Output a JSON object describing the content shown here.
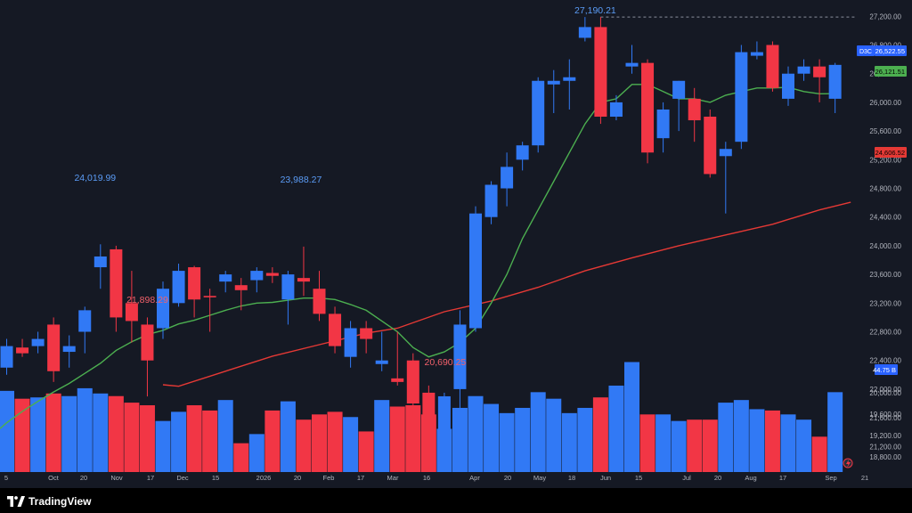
{
  "brand": {
    "name": "TradingView"
  },
  "chart_data": {
    "type": "candlestick",
    "up_color": "#3179f5",
    "down_color": "#f23645",
    "ma_fast_color": "#4caf50",
    "ma_slow_color": "#e53935",
    "y_ticks": [
      "27,200.00",
      "26,800.00",
      "26,400.00",
      "26,000.00",
      "25,600.00",
      "25,200.00",
      "24,800.00",
      "24,400.00",
      "24,000.00",
      "23,600.00",
      "23,200.00",
      "22,800.00",
      "22,400.00",
      "22,000.00",
      "21,600.00",
      "21,200.00",
      "20,800.00",
      "20,000.00",
      "19,600.00",
      "19,200.00",
      "18,800.00"
    ],
    "x_labels": [
      "5",
      "Oct",
      "20",
      "Nov",
      "17",
      "Dec",
      "15",
      "2026",
      "20",
      "Feb",
      "17",
      "Mar",
      "16",
      "Apr",
      "20",
      "May",
      "18",
      "Jun",
      "15",
      "Jul",
      "20",
      "Aug",
      "17",
      "Sep",
      "21"
    ],
    "candles": [
      {
        "o": 22300,
        "h": 22700,
        "l": 22200,
        "c": 22600
      },
      {
        "o": 22580,
        "h": 22700,
        "l": 22450,
        "c": 22500
      },
      {
        "o": 22600,
        "h": 22800,
        "l": 22500,
        "c": 22700
      },
      {
        "o": 22900,
        "h": 23000,
        "l": 22100,
        "c": 22250
      },
      {
        "o": 22520,
        "h": 22750,
        "l": 22300,
        "c": 22600
      },
      {
        "o": 22800,
        "h": 23150,
        "l": 22500,
        "c": 23100
      },
      {
        "o": 23700,
        "h": 24020,
        "l": 23400,
        "c": 23850
      },
      {
        "o": 23950,
        "h": 24000,
        "l": 22800,
        "c": 23000
      },
      {
        "o": 23200,
        "h": 23650,
        "l": 22650,
        "c": 22950
      },
      {
        "o": 22900,
        "h": 23000,
        "l": 21898,
        "c": 22400
      },
      {
        "o": 22850,
        "h": 23500,
        "l": 22700,
        "c": 23400
      },
      {
        "o": 23200,
        "h": 23750,
        "l": 23150,
        "c": 23650
      },
      {
        "o": 23700,
        "h": 23720,
        "l": 23000,
        "c": 23250
      },
      {
        "o": 23300,
        "h": 23400,
        "l": 22800,
        "c": 23280
      },
      {
        "o": 23500,
        "h": 23650,
        "l": 23350,
        "c": 23600
      },
      {
        "o": 23450,
        "h": 23550,
        "l": 23100,
        "c": 23380
      },
      {
        "o": 23520,
        "h": 23700,
        "l": 23350,
        "c": 23650
      },
      {
        "o": 23620,
        "h": 23700,
        "l": 23480,
        "c": 23580
      },
      {
        "o": 23250,
        "h": 23650,
        "l": 22900,
        "c": 23600
      },
      {
        "o": 23550,
        "h": 23988,
        "l": 23300,
        "c": 23500
      },
      {
        "o": 23400,
        "h": 23650,
        "l": 22950,
        "c": 23050
      },
      {
        "o": 23050,
        "h": 23150,
        "l": 22500,
        "c": 22600
      },
      {
        "o": 22450,
        "h": 22950,
        "l": 22300,
        "c": 22850
      },
      {
        "o": 22850,
        "h": 22950,
        "l": 22500,
        "c": 22700
      },
      {
        "o": 22350,
        "h": 22800,
        "l": 22250,
        "c": 22400
      },
      {
        "o": 22150,
        "h": 22800,
        "l": 22050,
        "c": 22100
      },
      {
        "o": 22400,
        "h": 22500,
        "l": 21600,
        "c": 21800
      },
      {
        "o": 21950,
        "h": 22050,
        "l": 20700,
        "c": 20900
      },
      {
        "o": 20800,
        "h": 21950,
        "l": 20690,
        "c": 21900
      },
      {
        "o": 22000,
        "h": 23100,
        "l": 21700,
        "c": 22900
      },
      {
        "o": 22850,
        "h": 24550,
        "l": 22800,
        "c": 24450
      },
      {
        "o": 24400,
        "h": 24900,
        "l": 24300,
        "c": 24850
      },
      {
        "o": 24800,
        "h": 25300,
        "l": 24550,
        "c": 25100
      },
      {
        "o": 25200,
        "h": 25450,
        "l": 25050,
        "c": 25400
      },
      {
        "o": 25400,
        "h": 26350,
        "l": 25300,
        "c": 26300
      },
      {
        "o": 26250,
        "h": 26450,
        "l": 25850,
        "c": 26300
      },
      {
        "o": 26300,
        "h": 26600,
        "l": 25900,
        "c": 26350
      },
      {
        "o": 26900,
        "h": 27190,
        "l": 26850,
        "c": 27050
      },
      {
        "o": 27050,
        "h": 27190,
        "l": 25700,
        "c": 25800
      },
      {
        "o": 25800,
        "h": 26100,
        "l": 25750,
        "c": 26000
      },
      {
        "o": 26500,
        "h": 26800,
        "l": 26400,
        "c": 26550
      },
      {
        "o": 26550,
        "h": 26600,
        "l": 25150,
        "c": 25300
      },
      {
        "o": 25500,
        "h": 26000,
        "l": 25300,
        "c": 25900
      },
      {
        "o": 26050,
        "h": 26300,
        "l": 25600,
        "c": 26300
      },
      {
        "o": 26050,
        "h": 26200,
        "l": 25450,
        "c": 25750
      },
      {
        "o": 25800,
        "h": 25900,
        "l": 24950,
        "c": 25000
      },
      {
        "o": 25250,
        "h": 25450,
        "l": 24450,
        "c": 25350
      },
      {
        "o": 25450,
        "h": 26800,
        "l": 25350,
        "c": 26700
      },
      {
        "o": 26650,
        "h": 26850,
        "l": 26600,
        "c": 26700
      },
      {
        "o": 26800,
        "h": 26850,
        "l": 26150,
        "c": 26200
      },
      {
        "o": 26050,
        "h": 26500,
        "l": 25950,
        "c": 26400
      },
      {
        "o": 26400,
        "h": 26600,
        "l": 26300,
        "c": 26500
      },
      {
        "o": 26500,
        "h": 26600,
        "l": 26000,
        "c": 26350
      },
      {
        "o": 26050,
        "h": 26550,
        "l": 25850,
        "c": 26522.55
      }
    ],
    "volume": [
      0.62,
      0.56,
      0.57,
      0.6,
      0.58,
      0.64,
      0.6,
      0.58,
      0.53,
      0.51,
      0.39,
      0.46,
      0.51,
      0.47,
      0.55,
      0.22,
      0.29,
      0.47,
      0.54,
      0.4,
      0.44,
      0.46,
      0.42,
      0.31,
      0.55,
      0.5,
      0.51,
      0.44,
      0.33,
      0.49,
      0.58,
      0.52,
      0.45,
      0.49,
      0.61,
      0.56,
      0.45,
      0.49,
      0.57,
      0.66,
      0.84,
      0.44,
      0.44,
      0.39,
      0.4,
      0.4,
      0.53,
      0.55,
      0.48,
      0.47,
      0.44,
      0.4,
      0.27,
      0.61
    ],
    "ma_fast": [
      21530,
      21690,
      21830,
      21960,
      22080,
      22220,
      22360,
      22540,
      22660,
      22760,
      22820,
      22910,
      22960,
      23030,
      23100,
      23160,
      23200,
      23210,
      23240,
      23270,
      23270,
      23250,
      23180,
      23100,
      22950,
      22800,
      22580,
      22450,
      22520,
      22650,
      22850,
      23200,
      23600,
      24100,
      24500,
      24900,
      25300,
      25700,
      26000,
      26050,
      26250,
      26250,
      26150,
      26050,
      26050,
      26000,
      26100,
      26150,
      26200,
      26200,
      26210,
      26150,
      26120,
      26121
    ],
    "ma_slow_points": [
      [
        11,
        22040
      ],
      [
        14,
        22250
      ],
      [
        17,
        22460
      ],
      [
        20,
        22620
      ],
      [
        23,
        22780
      ],
      [
        25,
        22850
      ],
      [
        28,
        23080
      ],
      [
        31,
        23230
      ],
      [
        34,
        23420
      ],
      [
        37,
        23650
      ],
      [
        40,
        23830
      ],
      [
        43,
        24000
      ],
      [
        46,
        24150
      ],
      [
        49,
        24300
      ],
      [
        52,
        24500
      ],
      [
        54,
        24606
      ]
    ],
    "y_ticks_vol": [],
    "labels": {
      "high1": "24,019.99",
      "low1": "21,898.29",
      "high2": "23,988.27",
      "low_all": "20,690.25",
      "high_all": "27,190.21"
    },
    "price_tags": {
      "last": {
        "symbol": "D3C",
        "value": "26,522.55"
      },
      "ma_fast": "26,121.51",
      "ma_slow": "24,606.52",
      "volume": "44.75 B"
    }
  }
}
